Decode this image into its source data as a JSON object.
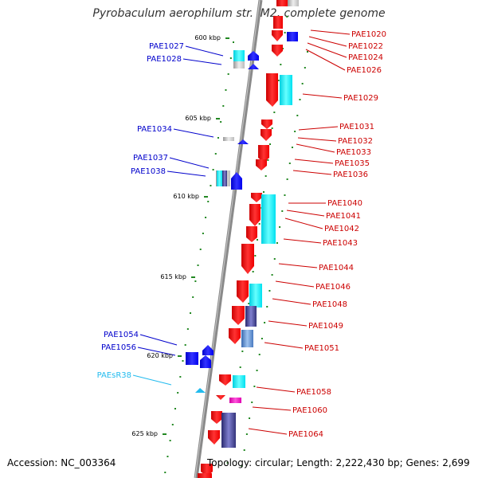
{
  "title": "Pyrobaculum aerophilum str. IM2, complete genome",
  "accession_text": "Accession: NC_003364",
  "topology_text": "Topology: circular; Length: 2,222,430 bp; Genes: 2,699",
  "colors": {
    "forward": "#ff0000",
    "reverse": "#0000ff",
    "rna": "#00bbee",
    "label_forward": "#cc0000",
    "label_reverse": "#0000cc",
    "label_rna": "#22bbee",
    "backbone": "#888888",
    "dots": "#228822"
  },
  "kbp_ticks": [
    "600 kbp",
    "605 kbp",
    "610 kbp",
    "615 kbp",
    "620 kbp",
    "625 kbp"
  ],
  "left_labels": [
    "PAE1027",
    "PAE1028",
    "PAE1034",
    "PAE1037",
    "PAE1038",
    "PAE1054",
    "PAE1056",
    "PAEsR38"
  ],
  "right_labels": [
    "PAE1020",
    "PAE1022",
    "PAE1024",
    "PAE1026",
    "PAE1029",
    "PAE1031",
    "PAE1032",
    "PAE1033",
    "PAE1035",
    "PAE1036",
    "PAE1040",
    "PAE1041",
    "PAE1042",
    "PAE1043",
    "PAE1044",
    "PAE1046",
    "PAE1048",
    "PAE1049",
    "PAE1051",
    "PAE1058",
    "PAE1060",
    "PAE1064"
  ]
}
